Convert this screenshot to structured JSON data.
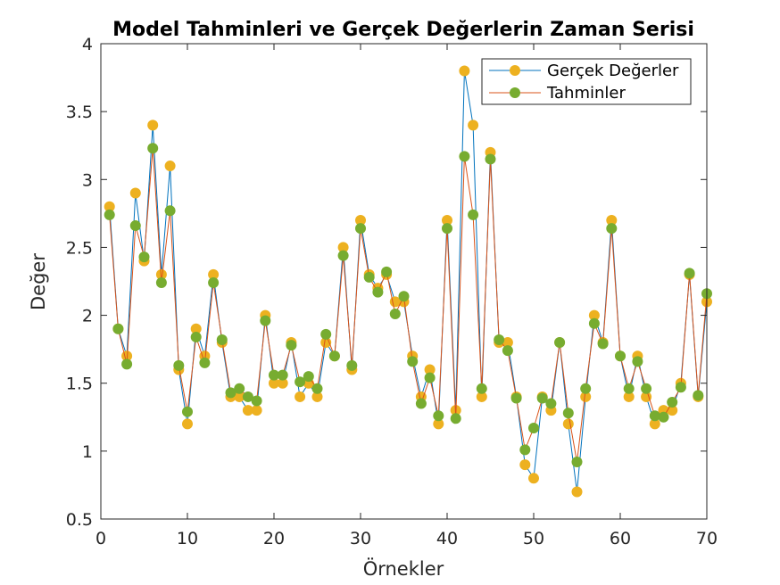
{
  "chart_data": {
    "type": "line",
    "title": "Model Tahminleri ve Gerçek Değerlerin Zaman Serisi",
    "xlabel": "Örnekler",
    "ylabel": "Değer",
    "xlim": [
      0,
      70
    ],
    "ylim": [
      0.5,
      4
    ],
    "xticks": [
      "0",
      "10",
      "20",
      "30",
      "40",
      "50",
      "60",
      "70"
    ],
    "yticks": [
      "0.5",
      "1",
      "1.5",
      "2",
      "2.5",
      "3",
      "3.5",
      "4"
    ],
    "grid": false,
    "legend_position": "top-right",
    "x": [
      1,
      2,
      3,
      4,
      5,
      6,
      7,
      8,
      9,
      10,
      11,
      12,
      13,
      14,
      15,
      16,
      17,
      18,
      19,
      20,
      21,
      22,
      23,
      24,
      25,
      26,
      27,
      28,
      29,
      30,
      31,
      32,
      33,
      34,
      35,
      36,
      37,
      38,
      39,
      40,
      41,
      42,
      43,
      44,
      45,
      46,
      47,
      48,
      49,
      50,
      51,
      52,
      53,
      54,
      55,
      56,
      57,
      58,
      59,
      60,
      61,
      62,
      63,
      64,
      65,
      66,
      67,
      68,
      69,
      70
    ],
    "series": [
      {
        "name": "Gerçek Değerler",
        "line_color": "#0072BD",
        "marker_color": "#EDB120",
        "values": [
          2.8,
          1.9,
          1.7,
          2.9,
          2.4,
          3.4,
          2.3,
          3.1,
          1.6,
          1.2,
          1.9,
          1.7,
          2.3,
          1.8,
          1.4,
          1.4,
          1.3,
          1.3,
          2.0,
          1.5,
          1.5,
          1.8,
          1.4,
          1.5,
          1.4,
          1.8,
          1.7,
          2.5,
          1.6,
          2.7,
          2.3,
          2.2,
          2.3,
          2.1,
          2.1,
          1.7,
          1.4,
          1.6,
          1.2,
          2.7,
          1.3,
          3.8,
          3.4,
          1.4,
          3.2,
          1.8,
          1.8,
          1.4,
          0.9,
          0.8,
          1.4,
          1.3,
          1.8,
          1.2,
          0.7,
          1.4,
          2.0,
          1.8,
          2.7,
          1.7,
          1.4,
          1.7,
          1.4,
          1.2,
          1.3,
          1.3,
          1.5,
          2.3,
          1.4,
          2.1
        ]
      },
      {
        "name": "Tahminler",
        "line_color": "#D95319",
        "marker_color": "#77AC30",
        "values": [
          2.74,
          1.9,
          1.64,
          2.66,
          2.43,
          3.23,
          2.24,
          2.77,
          1.63,
          1.29,
          1.84,
          1.65,
          2.24,
          1.82,
          1.43,
          1.46,
          1.4,
          1.37,
          1.96,
          1.56,
          1.56,
          1.78,
          1.51,
          1.55,
          1.46,
          1.86,
          1.7,
          2.44,
          1.63,
          2.64,
          2.28,
          2.17,
          2.32,
          2.01,
          2.14,
          1.66,
          1.35,
          1.54,
          1.26,
          2.64,
          1.24,
          3.17,
          2.74,
          1.46,
          3.15,
          1.82,
          1.74,
          1.39,
          1.01,
          1.17,
          1.39,
          1.35,
          1.8,
          1.28,
          0.92,
          1.46,
          1.94,
          1.79,
          2.64,
          1.7,
          1.46,
          1.66,
          1.46,
          1.26,
          1.25,
          1.36,
          1.47,
          2.31,
          1.41,
          2.16
        ]
      }
    ]
  }
}
